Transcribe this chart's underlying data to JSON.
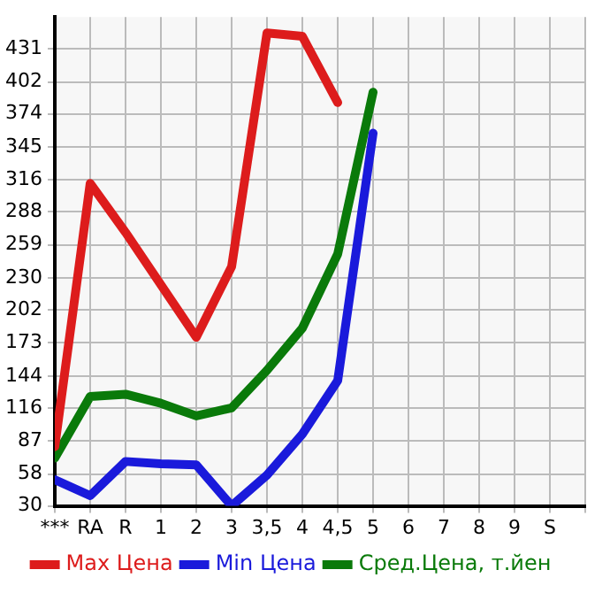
{
  "chart_data": {
    "type": "line",
    "categories": [
      "***",
      "RA",
      "R",
      "1",
      "2",
      "3",
      "3,5",
      "4",
      "4,5",
      "5",
      "6",
      "7",
      "8",
      "9",
      "S"
    ],
    "series": [
      {
        "name": "Max Цена",
        "color": "#dd1c1c",
        "values": [
          82,
          313,
          270,
          224,
          178,
          240,
          445,
          442,
          384,
          null,
          null,
          null,
          null,
          null,
          null
        ]
      },
      {
        "name": "Min Цена",
        "color": "#1a1adb",
        "values": [
          53,
          39,
          69,
          67,
          66,
          30,
          57,
          93,
          140,
          357,
          null,
          null,
          null,
          null,
          null
        ]
      },
      {
        "name": "Сред.Цена, т.йен",
        "color": "#0a7a0a",
        "values": [
          72,
          126,
          128,
          120,
          109,
          116,
          149,
          186,
          251,
          393,
          null,
          null,
          null,
          null,
          null
        ]
      }
    ],
    "ylim": [
      30,
      459
    ],
    "yticks": [
      30,
      58,
      87,
      116,
      144,
      173,
      202,
      230,
      259,
      288,
      316,
      345,
      374,
      402,
      431
    ],
    "grid": true,
    "legend": "bottom",
    "marker": "none",
    "line_style": "solid"
  }
}
